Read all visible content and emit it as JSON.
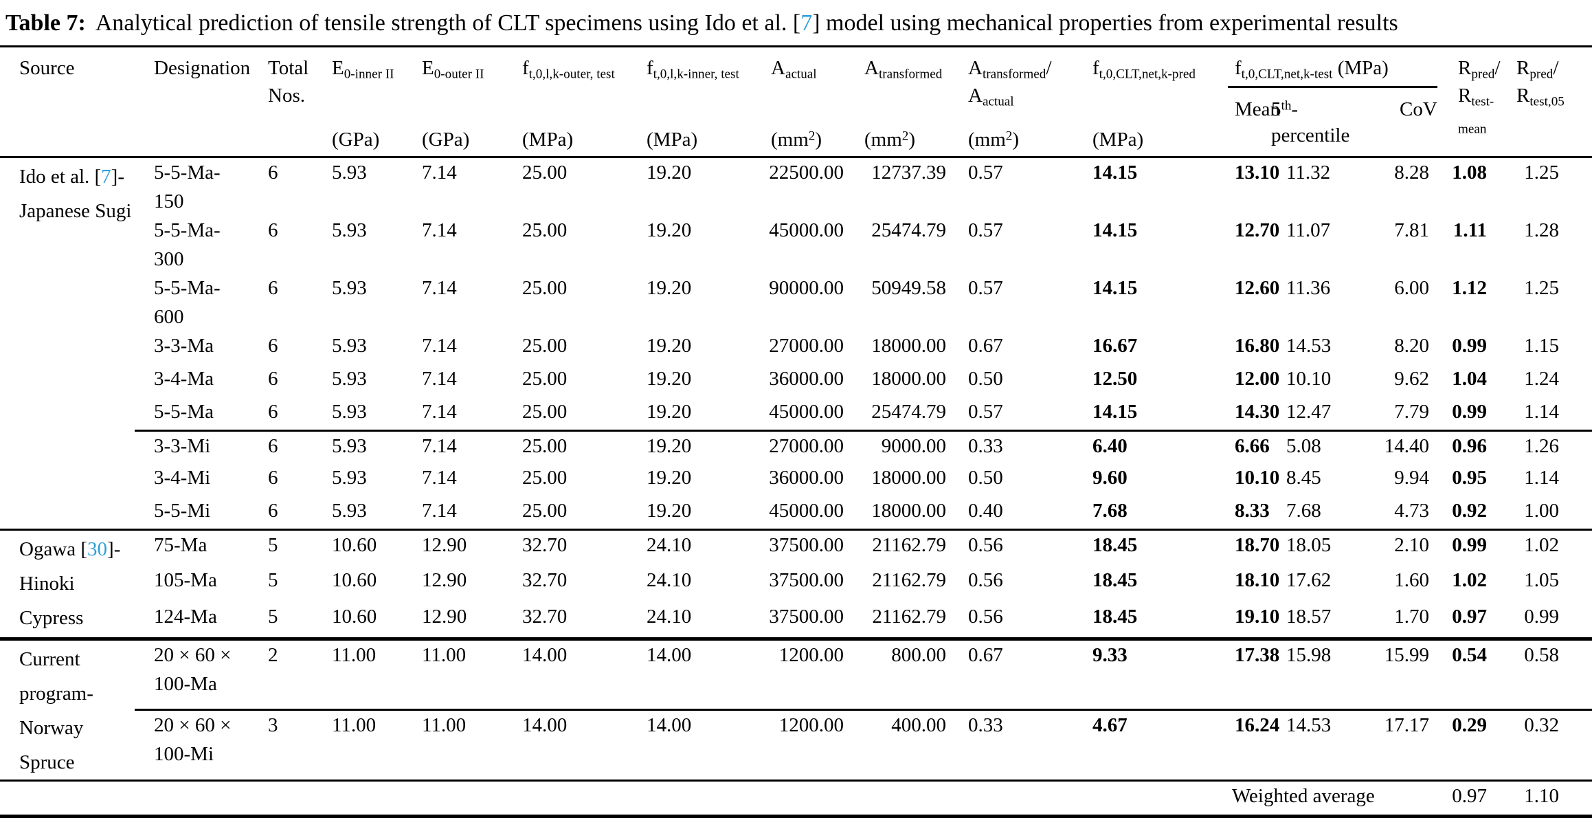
{
  "title": {
    "label": "Table 7:",
    "text": "Analytical prediction of tensile strength of CLT specimens using Ido et al. [@{7}] model using mechanical properties from experimental results"
  },
  "accent_color": "#2e9fd8",
  "header": {
    "left_columns": [
      {
        "id": "source",
        "label": "Source"
      },
      {
        "id": "designation",
        "label": "Designation"
      },
      {
        "id": "total-nos",
        "label": "Total\nNos."
      },
      {
        "id": "e-inner",
        "label": "E_{0-inner II}",
        "unit": "(GPa)"
      },
      {
        "id": "e-outer",
        "label": "E_{0-outer II}",
        "unit": "(GPa)"
      },
      {
        "id": "ft-outer",
        "label": "f_{t,0,l,k-outer, test}",
        "unit": "(MPa)"
      },
      {
        "id": "ft-inner",
        "label": "f_{t,0,l,k-inner, test}",
        "unit": "(MPa)"
      },
      {
        "id": "a-actual",
        "label": "A_{actual}",
        "unit": "(mm^{2})"
      },
      {
        "id": "a-transformed",
        "label": "A_{transformed}",
        "unit": "(mm^{2})"
      },
      {
        "id": "a-ratio",
        "label": "A_{transformed}/\nA_{actual}",
        "unit": "(mm^{2})"
      },
      {
        "id": "f-pred",
        "label": "f_{t,0,CLT,net,k-pred}",
        "unit": "(MPa)"
      }
    ],
    "group": {
      "id": "ft-test-group",
      "title": "f_{t,0,CLT,net,k-test} (MPa)",
      "subcolumns": [
        {
          "id": "mean",
          "label": "Mean"
        },
        {
          "id": "p5",
          "label": "5^{th}-\npercentile"
        },
        {
          "id": "cov",
          "label": "CoV"
        }
      ]
    },
    "right_columns": [
      {
        "id": "r-mean",
        "label": "R_{pred}/\nR_{test-}\n_{mean}"
      },
      {
        "id": "r-05",
        "label": "R_{pred}/\nR_{test,05}"
      }
    ]
  },
  "column_ids": [
    "designation",
    "total-nos",
    "e-inner",
    "e-outer",
    "ft-outer",
    "ft-inner",
    "a-actual",
    "a-transformed",
    "a-ratio",
    "f-pred",
    "mean",
    "p5",
    "cov",
    "r-mean",
    "r-05"
  ],
  "bold_column_ids": [
    "f-pred",
    "mean",
    "r-mean"
  ],
  "sections": [
    {
      "source": "Ido et al. [@{7}]-\nJapanese Sugi",
      "rows": [
        {
          "cells": [
            "5-5-Ma-150",
            "6",
            "5.93",
            "7.14",
            "25.00",
            "19.20",
            "22500.00",
            "12737.39",
            "0.57",
            "14.15",
            "13.10",
            "11.32",
            "8.28",
            "1.08",
            "1.25"
          ]
        },
        {
          "cells": [
            "5-5-Ma-300",
            "6",
            "5.93",
            "7.14",
            "25.00",
            "19.20",
            "45000.00",
            "25474.79",
            "0.57",
            "14.15",
            "12.70",
            "11.07",
            "7.81",
            "1.11",
            "1.28"
          ]
        },
        {
          "cells": [
            "5-5-Ma-600",
            "6",
            "5.93",
            "7.14",
            "25.00",
            "19.20",
            "90000.00",
            "50949.58",
            "0.57",
            "14.15",
            "12.60",
            "11.36",
            "6.00",
            "1.12",
            "1.25"
          ]
        },
        {
          "cells": [
            "3-3-Ma",
            "6",
            "5.93",
            "7.14",
            "25.00",
            "19.20",
            "27000.00",
            "18000.00",
            "0.67",
            "16.67",
            "16.80",
            "14.53",
            "8.20",
            "0.99",
            "1.15"
          ]
        },
        {
          "cells": [
            "3-4-Ma",
            "6",
            "5.93",
            "7.14",
            "25.00",
            "19.20",
            "36000.00",
            "18000.00",
            "0.50",
            "12.50",
            "12.00",
            "10.10",
            "9.62",
            "1.04",
            "1.24"
          ]
        },
        {
          "cells": [
            "5-5-Ma",
            "6",
            "5.93",
            "7.14",
            "25.00",
            "19.20",
            "45000.00",
            "25474.79",
            "0.57",
            "14.15",
            "14.30",
            "12.47",
            "7.79",
            "0.99",
            "1.14"
          ]
        },
        {
          "rule_above": true,
          "cells": [
            "3-3-Mi",
            "6",
            "5.93",
            "7.14",
            "25.00",
            "19.20",
            "27000.00",
            "9000.00",
            "0.33",
            "6.40",
            "6.66",
            "5.08",
            "14.40",
            "0.96",
            "1.26"
          ]
        },
        {
          "cells": [
            "3-4-Mi",
            "6",
            "5.93",
            "7.14",
            "25.00",
            "19.20",
            "36000.00",
            "18000.00",
            "0.50",
            "9.60",
            "10.10",
            "8.45",
            "9.94",
            "0.95",
            "1.14"
          ]
        },
        {
          "cells": [
            "5-5-Mi",
            "6",
            "5.93",
            "7.14",
            "25.00",
            "19.20",
            "45000.00",
            "18000.00",
            "0.40",
            "7.68",
            "8.33",
            "7.68",
            "4.73",
            "0.92",
            "1.00"
          ]
        }
      ]
    },
    {
      "source": "Ogawa [@{30}]-\nHinoki\nCypress",
      "rows": [
        {
          "cells": [
            "75-Ma",
            "5",
            "10.60",
            "12.90",
            "32.70",
            "24.10",
            "37500.00",
            "21162.79",
            "0.56",
            "18.45",
            "18.70",
            "18.05",
            "2.10",
            "0.99",
            "1.02"
          ]
        },
        {
          "cells": [
            "105-Ma",
            "5",
            "10.60",
            "12.90",
            "32.70",
            "24.10",
            "37500.00",
            "21162.79",
            "0.56",
            "18.45",
            "18.10",
            "17.62",
            "1.60",
            "1.02",
            "1.05"
          ]
        },
        {
          "cells": [
            "124-Ma",
            "5",
            "10.60",
            "12.90",
            "32.70",
            "24.10",
            "37500.00",
            "21162.79",
            "0.56",
            "18.45",
            "19.10",
            "18.57",
            "1.70",
            "0.97",
            "0.99"
          ]
        }
      ]
    },
    {
      "source": "Current\nprogram-\nNorway\nSpruce",
      "rows": [
        {
          "cells": [
            "20 × 60 ×\n100-Ma",
            "2",
            "11.00",
            "11.00",
            "14.00",
            "14.00",
            "1200.00",
            "800.00",
            "0.67",
            "9.33",
            "17.38",
            "15.98",
            "15.99",
            "0.54",
            "0.58"
          ]
        },
        {
          "rule_above": true,
          "cells": [
            "20 × 60 ×\n100-Mi",
            "3",
            "11.00",
            "11.00",
            "14.00",
            "14.00",
            "1200.00",
            "400.00",
            "0.33",
            "4.67",
            "16.24",
            "14.53",
            "17.17",
            "0.29",
            "0.32"
          ]
        }
      ]
    }
  ],
  "footer": {
    "label": "Weighted average",
    "r_mean": "0.97",
    "r_05": "1.10"
  }
}
